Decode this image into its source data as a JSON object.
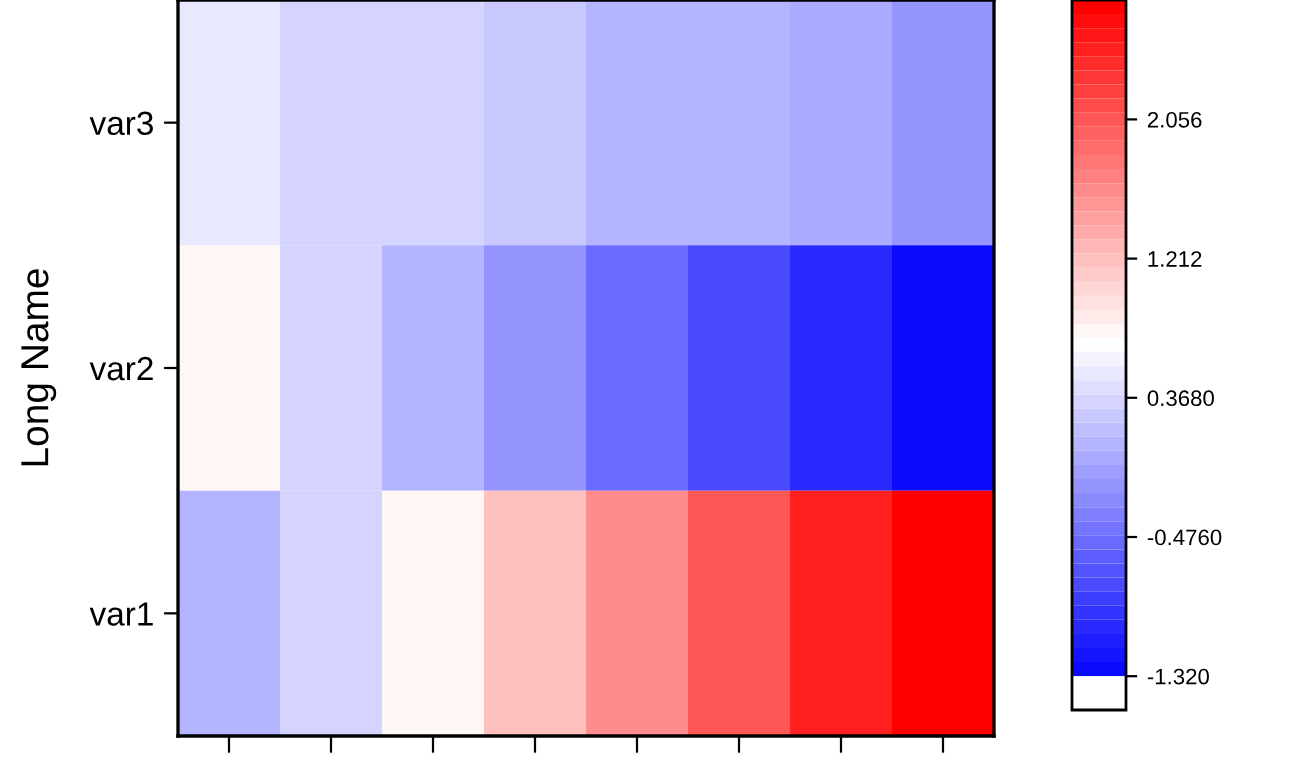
{
  "chart_data": {
    "type": "heatmap",
    "ylabel": "Long Name",
    "categories": [
      null,
      null,
      null,
      null,
      null,
      null,
      null,
      null
    ],
    "y_categories": [
      "var3",
      "var2",
      "var1"
    ],
    "cells": [
      [
        0.48,
        0.38,
        0.38,
        0.26,
        0.09,
        0.09,
        -0.03,
        -0.19
      ],
      [
        0.8,
        0.38,
        0.09,
        -0.19,
        -0.48,
        -0.77,
        -1.05,
        -1.32
      ],
      [
        0.09,
        0.38,
        0.8,
        1.2,
        1.65,
        2.06,
        2.51,
        2.78
      ]
    ],
    "clim": [
      -1.32,
      2.78
    ],
    "cticks": [
      {
        "value": -1.32,
        "label": "-1.320"
      },
      {
        "value": -0.476,
        "label": "-0.4760"
      },
      {
        "value": 0.368,
        "label": "0.3680"
      },
      1.212,
      2.056
    ]
  }
}
